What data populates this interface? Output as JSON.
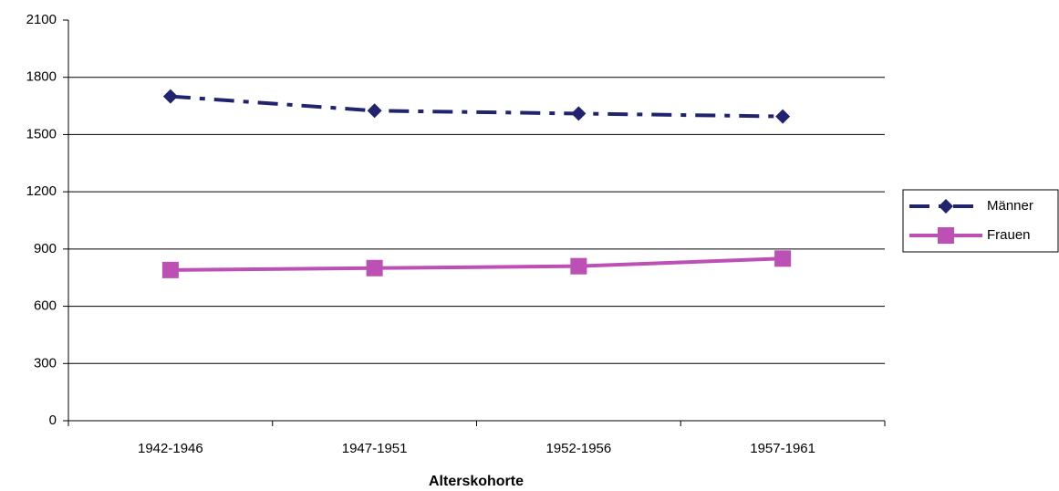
{
  "chart_data": {
    "type": "line",
    "x_label": "Alterskohorte",
    "categories": [
      "1942-1946",
      "1947-1951",
      "1952-1956",
      "1957-1961"
    ],
    "series": [
      {
        "name": "Männer",
        "color": "#22236e",
        "marker": "diamond",
        "dash": "dashdot",
        "values": [
          1700,
          1625,
          1610,
          1595
        ]
      },
      {
        "name": "Frauen",
        "color": "#bd50b4",
        "marker": "square",
        "dash": "solid",
        "values": [
          790,
          800,
          810,
          850
        ]
      }
    ],
    "ylim": [
      0,
      2100
    ],
    "yticks": [
      0,
      300,
      600,
      900,
      1200,
      1500,
      1800,
      2100
    ],
    "grid": true,
    "legend": "right"
  }
}
